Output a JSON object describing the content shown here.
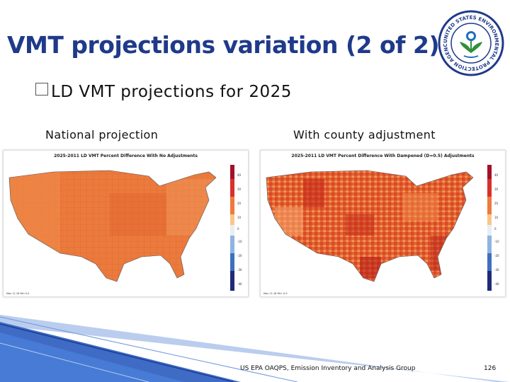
{
  "slide": {
    "title": "VMT projections variation (2 of 2)",
    "bullet": "LD VMT projections for 2025",
    "bullet_marker": "square-bullet-icon",
    "maps": [
      {
        "label": "National projection",
        "chart_title": "2025-2011 LD VMT Percent Difference With No Adjustments",
        "footnote": "Max 11.18  Min 0.0"
      },
      {
        "label": "With county adjustment",
        "chart_title": "2025-2011 LD VMT Percent Difference With Dampened (D=0.5) Adjustments",
        "footnote": "Max 11.18  Min -0.5"
      }
    ],
    "colorbar_ticks": [
      "40",
      "30",
      "20",
      "10",
      "0",
      "-10",
      "-20",
      "-30",
      "-40"
    ],
    "footer": "US EPA OAQPS, Emission Inventory and Analysis Group",
    "page_number": "126",
    "logo": {
      "icon": "epa-seal-icon",
      "ring_text": "UNITED STATES ENVIRONMENTAL PROTECTION AGENCY"
    }
  },
  "colors": {
    "title": "#1f3a8a",
    "map_orange": "#ec7a3c",
    "map_dark_red": "#c42a1a",
    "map_light": "#f6a36b",
    "footer_blue": "#2a5bbf"
  }
}
